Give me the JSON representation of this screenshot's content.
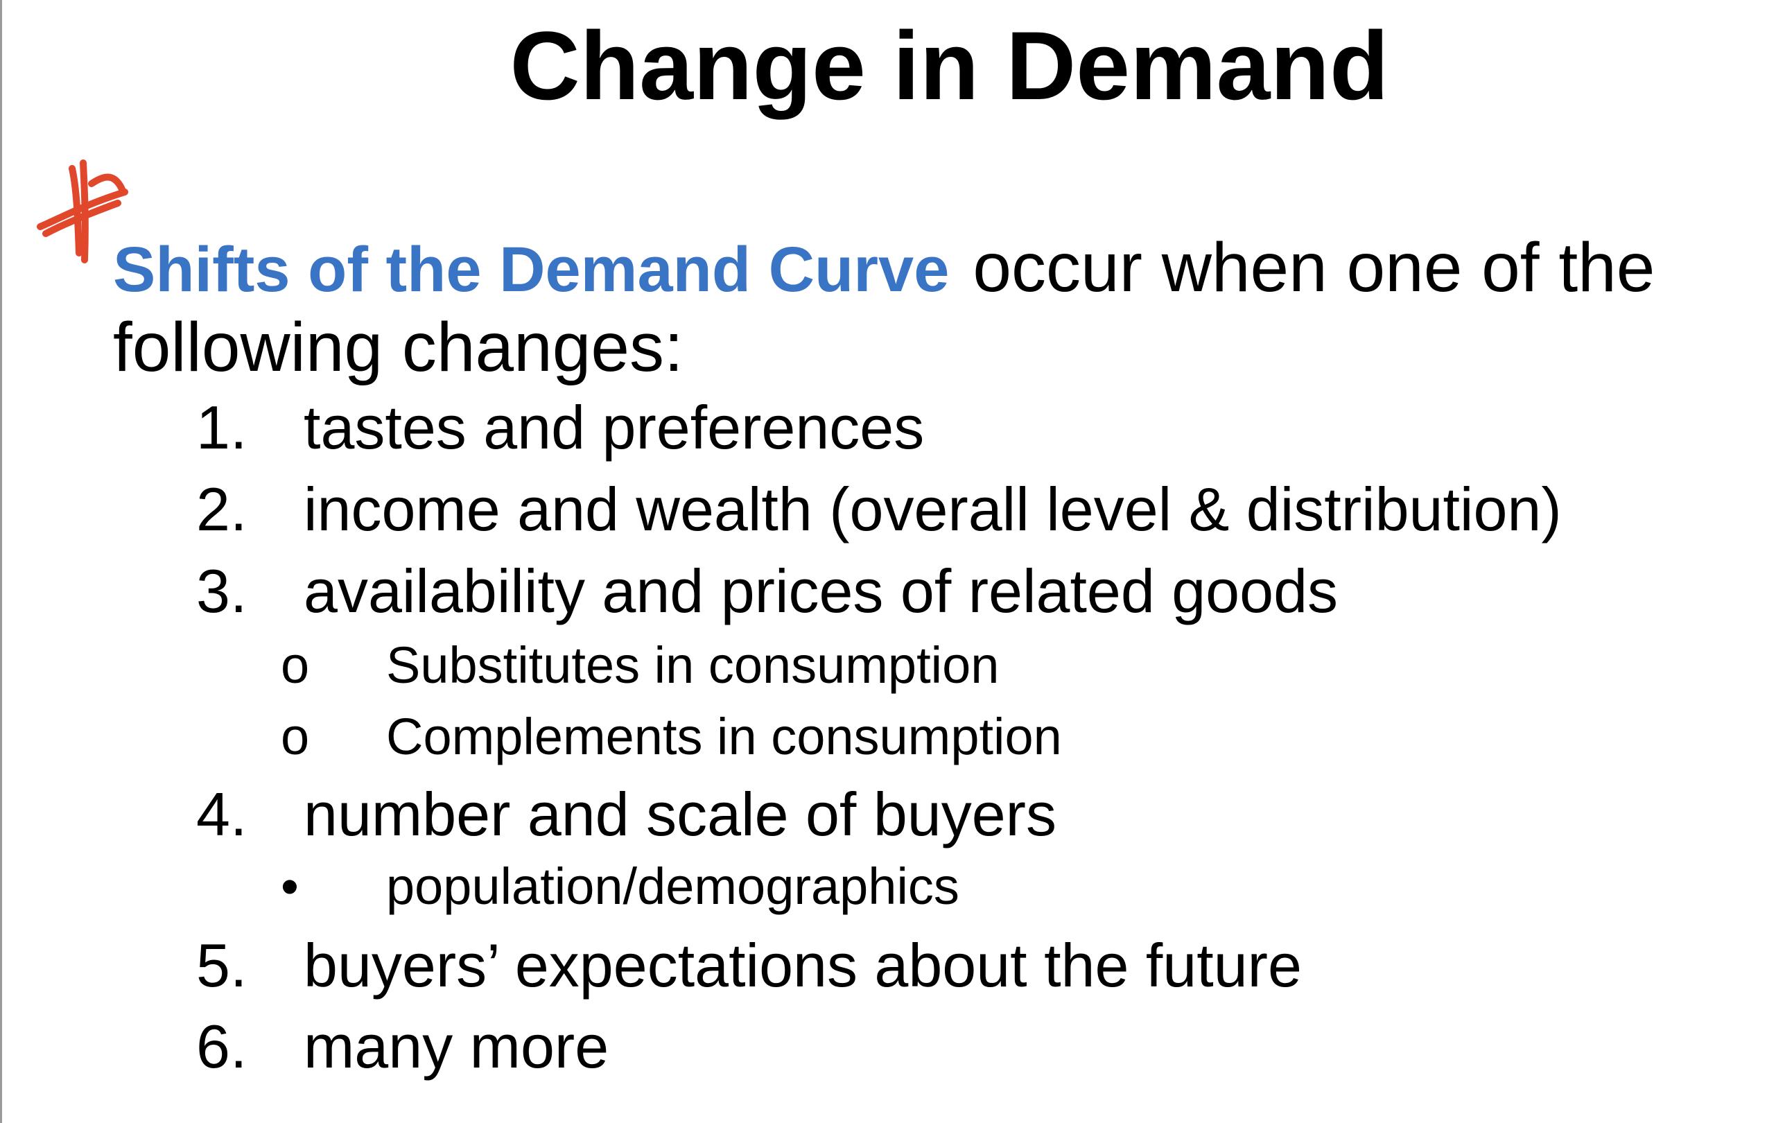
{
  "slide": {
    "title": "Change in Demand",
    "intro_highlight": "Shifts of the Demand Curve",
    "intro_rest_line1": "occur when one of the",
    "intro_line2": "following changes:",
    "star_color": "#e0472b",
    "highlight_color": "#3a74c4",
    "items": [
      {
        "num": "1.",
        "text": "tastes and preferences"
      },
      {
        "num": "2.",
        "text": "income and wealth (overall level & distribution)"
      },
      {
        "num": "3.",
        "text": "availability and prices of related goods"
      },
      {
        "num": "4.",
        "text": "number and scale of buyers"
      },
      {
        "num": "5.",
        "text": "buyers’ expectations about the future"
      },
      {
        "num": "6.",
        "text": "many more"
      }
    ],
    "subitems": [
      {
        "bullet": "o",
        "text": "Substitutes in consumption"
      },
      {
        "bullet": "o",
        "text": "Complements in consumption"
      },
      {
        "bullet": "•",
        "text": "population/demographics"
      }
    ]
  }
}
